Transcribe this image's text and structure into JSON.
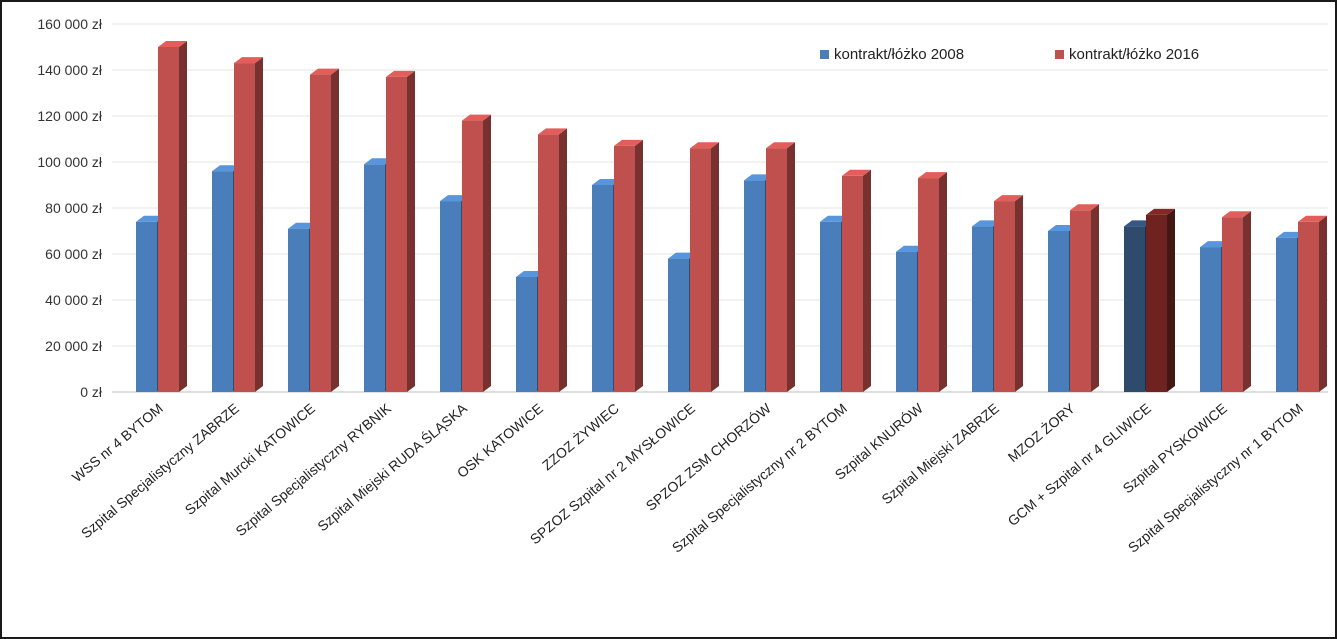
{
  "chart_data": {
    "type": "bar",
    "title": "",
    "xlabel": "",
    "ylabel": "",
    "ylim": [
      0,
      160000
    ],
    "yticks": [
      "0 zł",
      "20 000 zł",
      "40 000 zł",
      "60 000 zł",
      "80 000 zł",
      "100 000 zł",
      "120 000 zł",
      "140 000 zł",
      "160 000 zł"
    ],
    "grid": true,
    "legend_position": "top-right",
    "style": "3d-clustered-columns",
    "colors": {
      "series_2008": "#4a7ebb",
      "series_2016": "#c0504d",
      "highlight_2008": "#2e4a6d",
      "highlight_2016": "#6e2321",
      "grid": "#e6e6e6",
      "axis": "#bfbfbf"
    },
    "highlighted_category": "GCM + Szpital nr 4 GLIWICE",
    "categories": [
      "WSS nr 4 BYTOM",
      "Szpital Specjalistyczny ZABRZE",
      "Szpital Murcki KATOWICE",
      "Szpital Specjalistyczny RYBNIK",
      "Szpital Miejski RUDA ŚLĄSKA",
      "OSK KATOWICE",
      "ZZOZ ŻYWIEC",
      "SPZOZ Szpital nr 2 MYSŁOWICE",
      "SPZOZ ZSM CHORZÓW",
      "Szpital Specjalistyczny nr 2 BYTOM",
      "Szpital KNURÓW",
      "Szpital Miejski ZABRZE",
      "MZOZ ŻORY",
      "GCM + Szpital nr 4 GLIWICE",
      "Szpital PYSKOWICE",
      "Szpital Specjalistyczny nr 1 BYTOM"
    ],
    "series": [
      {
        "name": "kontrakt/łóżko 2008",
        "values": [
          74000,
          96000,
          71000,
          99000,
          83000,
          50000,
          90000,
          58000,
          92000,
          74000,
          61000,
          72000,
          70000,
          72000,
          63000,
          67000
        ]
      },
      {
        "name": "kontrakt/łóżko 2016",
        "values": [
          150000,
          143000,
          138000,
          137000,
          118000,
          112000,
          107000,
          106000,
          106000,
          94000,
          93000,
          83000,
          79000,
          77000,
          76000,
          74000
        ]
      }
    ]
  }
}
